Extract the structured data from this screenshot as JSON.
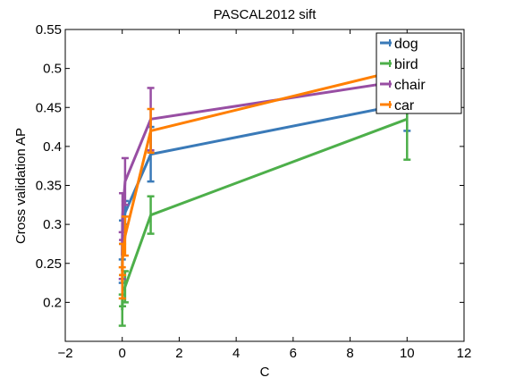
{
  "chart_data": {
    "type": "line",
    "title": "PASCAL2012 sift",
    "xlabel": "C",
    "ylabel": "Cross validation AP",
    "xlim": [
      -2,
      12
    ],
    "ylim": [
      0.15,
      0.55
    ],
    "xticks": [
      -2,
      0,
      2,
      4,
      6,
      8,
      10,
      12
    ],
    "xtick_labels": [
      "−2",
      "0",
      "2",
      "4",
      "6",
      "8",
      "10",
      "12"
    ],
    "yticks": [
      0.2,
      0.25,
      0.3,
      0.35,
      0.4,
      0.45,
      0.5,
      0.55
    ],
    "ytick_labels": [
      "0.2",
      "0.25",
      "0.3",
      "0.35",
      "0.4",
      "0.45",
      "0.5",
      "0.55"
    ],
    "grid": false,
    "legend_position": "top-right",
    "series": [
      {
        "name": "dog",
        "color": "#3a7ab8",
        "x": [
          0.001,
          0.01,
          0.1,
          1,
          10
        ],
        "y": [
          0.24,
          0.29,
          0.315,
          0.39,
          0.455
        ],
        "err": [
          0.015,
          0.015,
          0.015,
          0.035,
          0.035
        ]
      },
      {
        "name": "bird",
        "color": "#4daf4a",
        "x": [
          0.001,
          0.01,
          0.1,
          1,
          10
        ],
        "y": [
          0.19,
          0.215,
          0.22,
          0.312,
          0.435
        ],
        "err": [
          0.02,
          0.02,
          0.02,
          0.024,
          0.052
        ]
      },
      {
        "name": "chair",
        "color": "#984ea3",
        "x": [
          0.001,
          0.01,
          0.1,
          1,
          10
        ],
        "y": [
          0.26,
          0.31,
          0.355,
          0.435,
          0.485
        ],
        "err": [
          0.03,
          0.03,
          0.03,
          0.04,
          0.04
        ]
      },
      {
        "name": "car",
        "color": "#ff7f00",
        "x": [
          0.001,
          0.01,
          0.1,
          1,
          10
        ],
        "y": [
          0.225,
          0.255,
          0.285,
          0.42,
          0.5
        ],
        "err": [
          0.02,
          0.02,
          0.025,
          0.028,
          0.028
        ]
      }
    ]
  }
}
